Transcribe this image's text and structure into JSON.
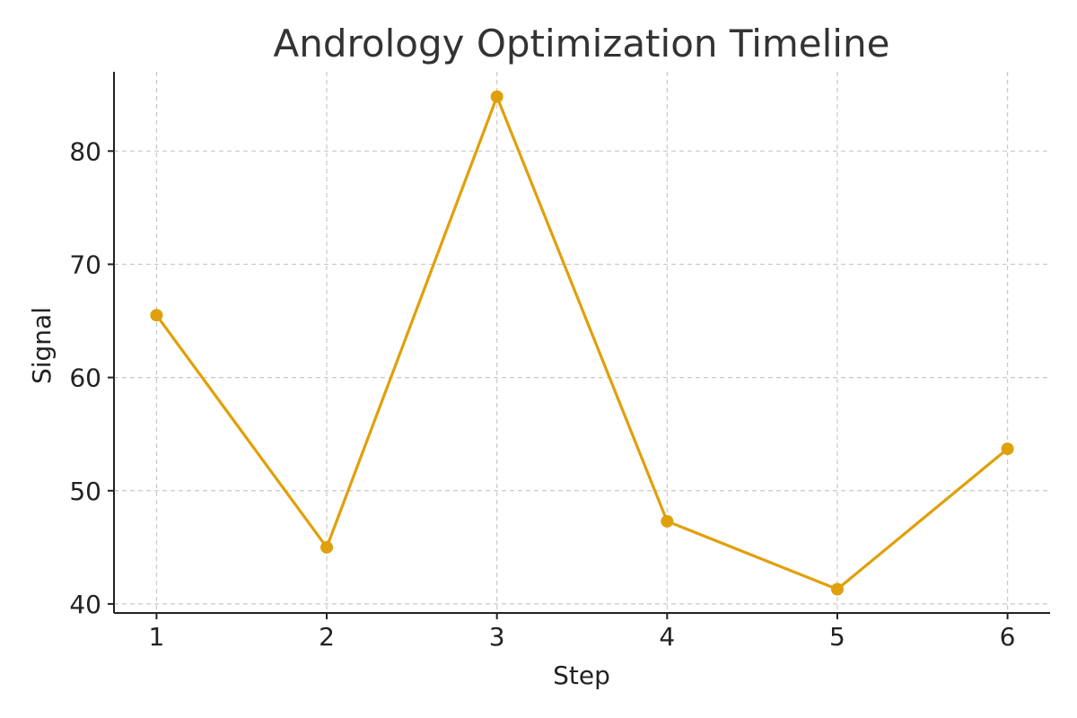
{
  "chart_data": {
    "type": "line",
    "title": "Andrology Optimization Timeline",
    "xlabel": "Step",
    "ylabel": "Signal",
    "x": [
      1,
      2,
      3,
      4,
      5,
      6
    ],
    "xticks": [
      "1",
      "2",
      "3",
      "4",
      "5",
      "6"
    ],
    "xlim": [
      0.75,
      6.25
    ],
    "ylim": [
      39.2,
      87
    ],
    "yticks": [
      40,
      50,
      60,
      70,
      80
    ],
    "grid": true,
    "legend": "none",
    "series": [
      {
        "values": [
          65.5,
          45.0,
          84.8,
          47.3,
          41.3,
          53.7
        ],
        "color": "#e0a00a",
        "marker": "circle"
      }
    ]
  }
}
